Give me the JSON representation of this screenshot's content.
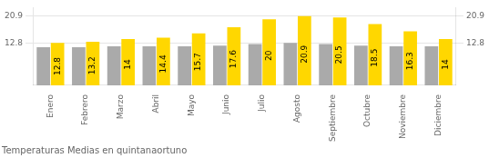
{
  "chart_data": {
    "type": "bar",
    "title": "Temperaturas Medias en quintanaortuno",
    "categories": [
      "Enero",
      "Febrero",
      "Marzo",
      "Abril",
      "Mayo",
      "Junio",
      "Julio",
      "Agosto",
      "Septiembre",
      "Octubre",
      "Noviembre",
      "Diciembre"
    ],
    "series": [
      {
        "color": "#AAAAAA",
        "values": [
          11.5,
          11.5,
          11.8,
          11.8,
          11.8,
          12.0,
          12.5,
          12.8,
          12.5,
          12.0,
          11.8,
          11.8
        ]
      },
      {
        "color": "#FFD700",
        "values": [
          12.8,
          13.2,
          14.0,
          14.4,
          15.7,
          17.6,
          20.0,
          20.9,
          20.5,
          18.5,
          16.3,
          14.0
        ],
        "data_labels": true
      }
    ],
    "ylim": [
      0,
      23.5
    ],
    "yticks": [
      12.8,
      20.9
    ],
    "y2lim": [
      0,
      23.5
    ],
    "y2ticks": [
      12.8,
      20.9
    ],
    "grid": true
  }
}
